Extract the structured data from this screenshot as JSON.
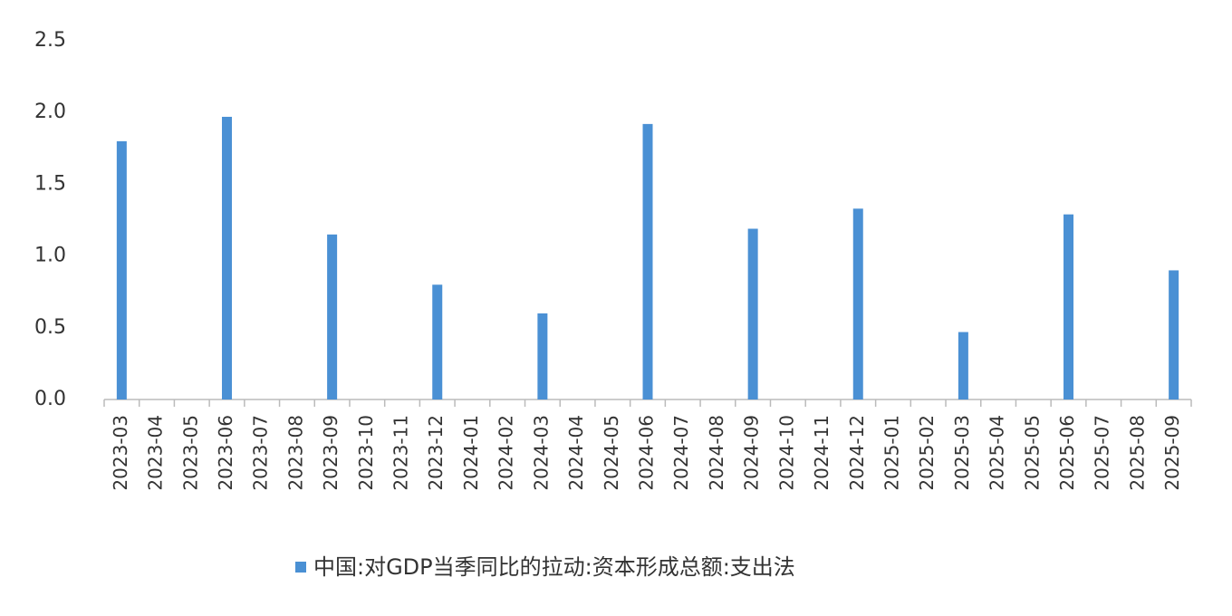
{
  "chart_data": {
    "type": "bar",
    "categories": [
      "2023-03",
      "2023-04",
      "2023-05",
      "2023-06",
      "2023-07",
      "2023-08",
      "2023-09",
      "2023-10",
      "2023-11",
      "2023-12",
      "2024-01",
      "2024-02",
      "2024-03",
      "2024-04",
      "2024-05",
      "2024-06",
      "2024-07",
      "2024-08",
      "2024-09",
      "2024-10",
      "2024-11",
      "2024-12",
      "2025-01",
      "2025-02",
      "2025-03",
      "2025-04",
      "2025-05",
      "2025-06",
      "2025-07",
      "2025-08",
      "2025-09"
    ],
    "series": [
      {
        "name": "中国:对GDP当季同比的拉动:资本形成总额:支出法",
        "color": "#4a90d4",
        "values": [
          1.8,
          null,
          null,
          1.97,
          null,
          null,
          1.15,
          null,
          null,
          0.8,
          null,
          null,
          0.6,
          null,
          null,
          1.92,
          null,
          null,
          1.19,
          null,
          null,
          1.33,
          null,
          null,
          0.47,
          null,
          null,
          1.29,
          null,
          null,
          0.9
        ]
      }
    ],
    "ylim": [
      0,
      2.5
    ],
    "yticks": [
      {
        "value": 0,
        "label": "0.0"
      },
      0.5,
      {
        "value": 1,
        "label": "1.0"
      },
      1.5,
      {
        "value": 2,
        "label": "2.0"
      },
      2.5
    ],
    "grid": false,
    "legend": "bottom"
  }
}
